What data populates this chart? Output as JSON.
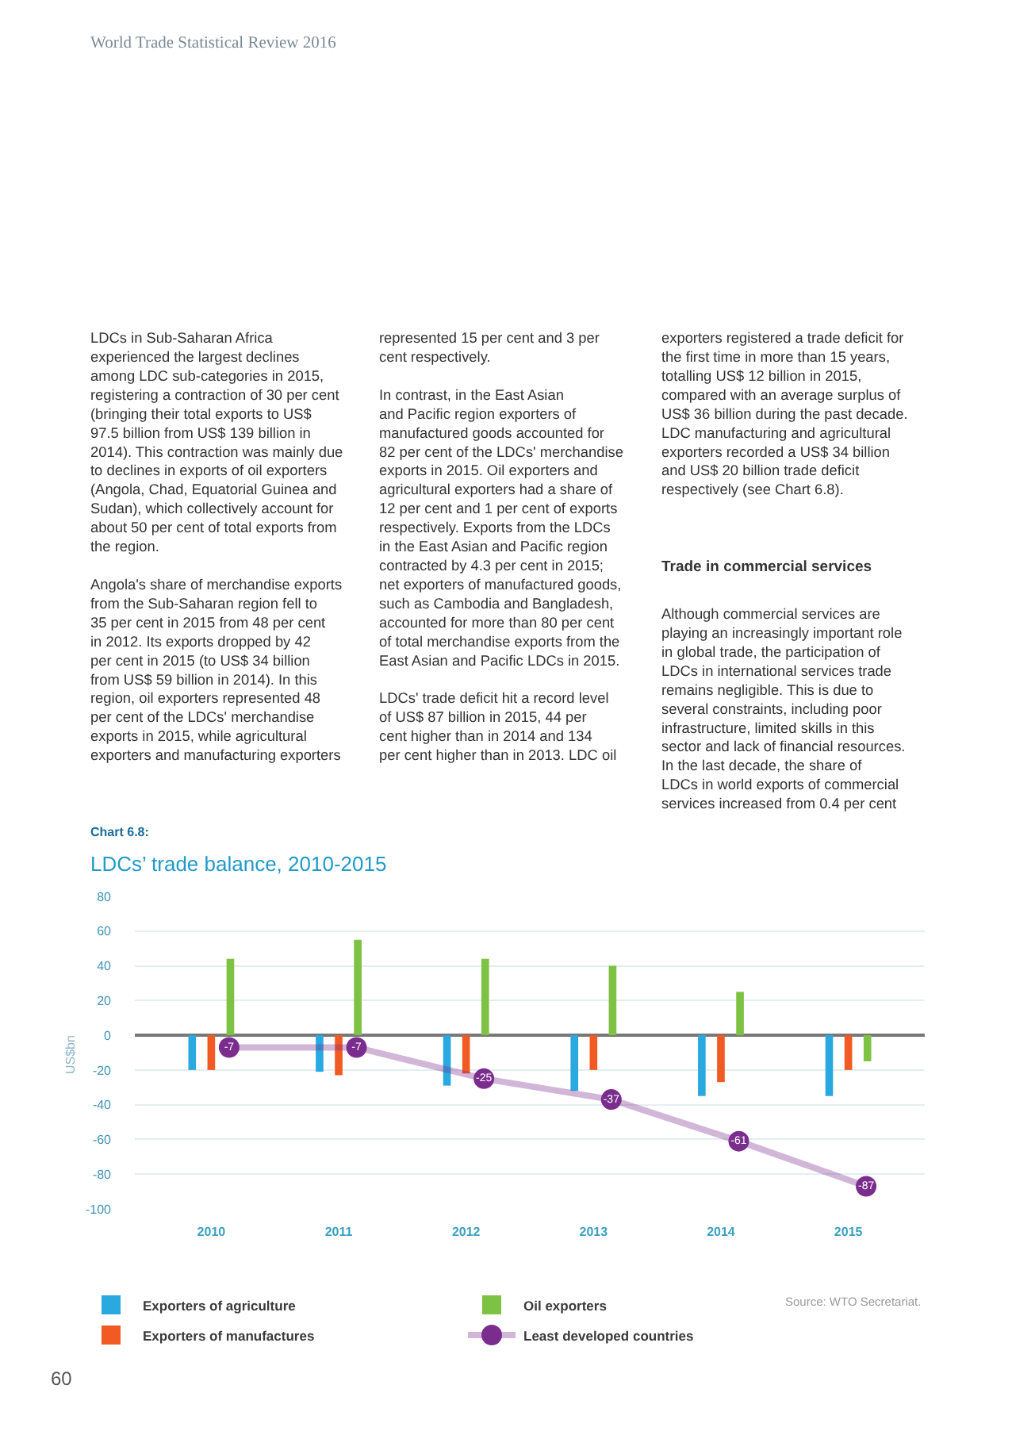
{
  "chart_data": {
    "type": "bar",
    "title": "LDCs’ trade balance, 2010-2015",
    "subtitle": "Chart 6.8:",
    "ylabel": "US$bn",
    "categories": [
      "2010",
      "2011",
      "2012",
      "2013",
      "2014",
      "2015"
    ],
    "series": [
      {
        "name": "Exporters of agriculture",
        "color": "#29a9e0",
        "values": [
          -20,
          -21,
          -29,
          -32,
          -35,
          -35
        ]
      },
      {
        "name": "Exporters of manufactures",
        "color": "#f15a22",
        "values": [
          -20,
          -23,
          -22,
          -20,
          -27,
          -20
        ]
      },
      {
        "name": "Oil exporters",
        "color": "#7dc242",
        "values": [
          44,
          55,
          44,
          40,
          25,
          -15
        ]
      },
      {
        "name": "Least developed countries",
        "type": "line",
        "color": "#7b2d8e",
        "marker": "circle",
        "values": [
          -7,
          -7,
          -25,
          -37,
          -61,
          -87
        ],
        "value_labels": [
          "-7",
          "-7",
          "-25",
          "-37",
          "-61",
          "-87"
        ]
      }
    ],
    "ylim": [
      -100,
      80
    ],
    "yticks": [
      -100,
      -80,
      -60,
      -40,
      -20,
      0,
      20,
      40,
      60,
      80
    ],
    "grid": "y",
    "legend": "bottom",
    "annotations": [
      "World Trade Statistical Review 2016",
      "LDCs in Sub-Saharan Africa\nexperienced the largest declines\namong LDC sub-categories in 2015,\nregistering a contraction of 30 per cent\n(bringing their total exports to US$\n97.5 billion from US$ 139 billion in\n2014). This contraction was mainly due\nto declines in exports of oil exporters\n(Angola, Chad, Equatorial Guinea and\nSudan), which collectively account for\nabout 50 per cent of total exports from\nthe region.\n\nAngola's share of merchandise exports\nfrom the Sub-Saharan region fell to\n35 per cent in 2015 from 48 per cent\nin 2012. Its exports dropped by 42\nper cent in 2015 (to US$ 34 billion\nfrom US$ 59 billion in 2014). In this\nregion, oil exporters represented 48\nper cent of the LDCs' merchandise\nexports in 2015, while agricultural\nexporters and manufacturing exporters",
      "represented 15 per cent and 3 per\ncent respectively.\n\nIn contrast, in the East Asian\nand Pacific region exporters of\nmanufactured goods accounted for\n82 per cent of the LDCs' merchandise\nexports in 2015. Oil exporters and\nagricultural exporters had a share of\n12 per cent and 1 per cent of exports\nrespectively. Exports from the LDCs\nin the East Asian and Pacific region\ncontracted by 4.3 per cent in 2015;\nnet exporters of manufactured goods,\nsuch as Cambodia and Bangladesh,\naccounted for more than 80 per cent\nof total merchandise exports from the\nEast Asian and Pacific LDCs in 2015.\n\nLDCs' trade deficit hit a record level\nof US$ 87 billion in 2015, 44 per\ncent higher than in 2014 and 134\nper cent higher than in 2013. LDC oil",
      "exporters registered a trade deficit for\nthe first time in more than 15 years,\ntotalling US$ 12 billion in 2015,\ncompared with an average surplus of\nUS$ 36 billion during the past decade.\nLDC manufacturing and agricultural\nexporters recorded a US$ 34 billion\nand US$ 20 billion trade deficit\nrespectively (see Chart 6.8).",
      "Trade in commercial services",
      "Although commercial services are\nplaying an increasingly important role\nin global trade, the participation of\nLDCs in international services trade\nremains negligible. This is due to\nseveral constraints, including poor\ninfrastructure, limited skills in this\nsector and lack of financial resources.\nIn the last decade, the share of\nLDCs in world exports of commercial\nservices increased from 0.4 per cent",
      "Source: WTO Secretariat.",
      "60"
    ]
  }
}
